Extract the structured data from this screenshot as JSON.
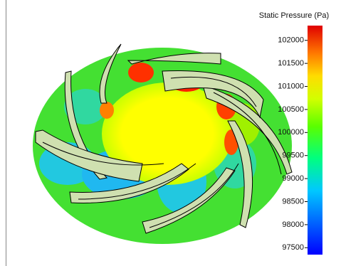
{
  "colorbar": {
    "title": "Static Pressure (Pa)",
    "range": [
      97350,
      102320
    ],
    "ticks": [
      {
        "value": 102000,
        "label": "102000"
      },
      {
        "value": 101500,
        "label": "101500"
      },
      {
        "value": 101000,
        "label": "101000"
      },
      {
        "value": 100500,
        "label": "100500"
      },
      {
        "value": 100000,
        "label": "100000"
      },
      {
        "value": 99500,
        "label": "99500"
      },
      {
        "value": 99000,
        "label": "99000"
      },
      {
        "value": 98500,
        "label": "98500"
      },
      {
        "value": 98000,
        "label": "98000"
      },
      {
        "value": 97500,
        "label": "97500"
      }
    ]
  }
}
